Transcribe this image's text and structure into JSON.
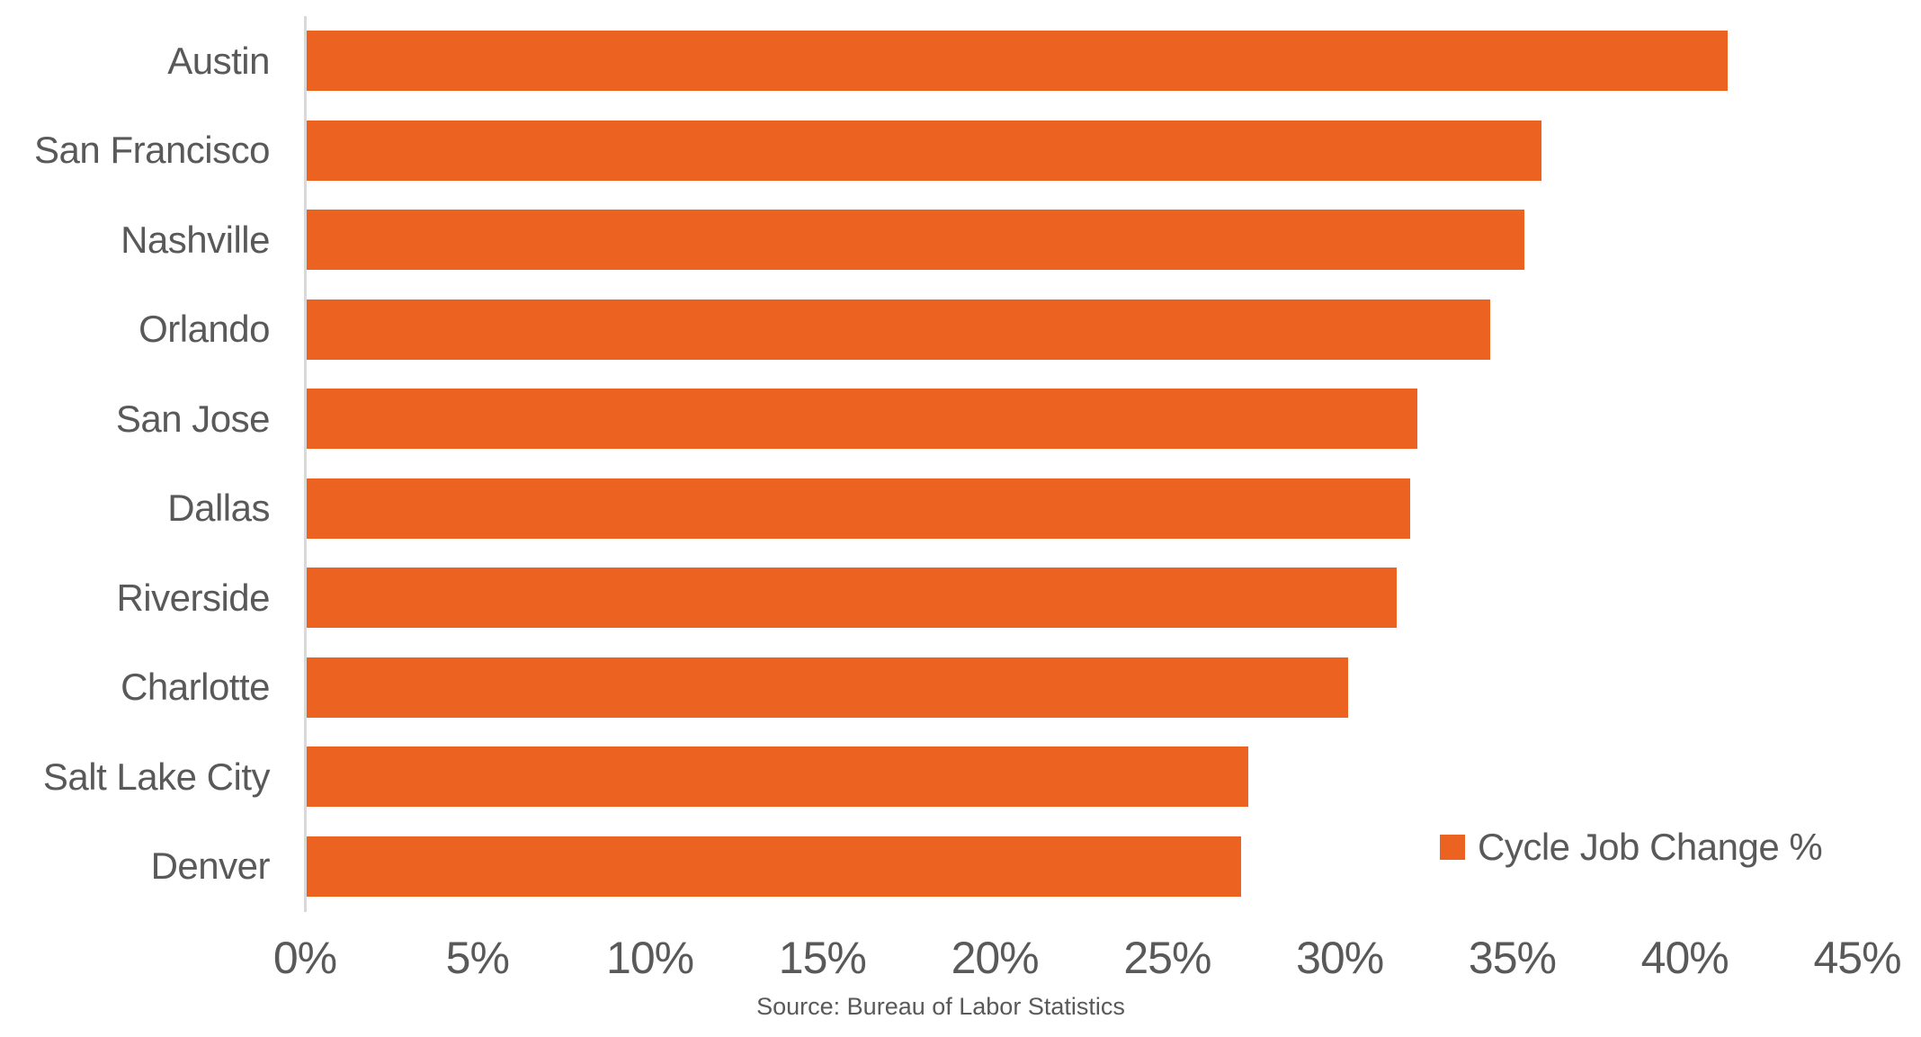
{
  "chart_data": {
    "type": "bar",
    "orientation": "horizontal",
    "categories": [
      "Austin",
      "San Francisco",
      "Nashville",
      "Orlando",
      "San Jose",
      "Dallas",
      "Riverside",
      "Charlotte",
      "Salt Lake City",
      "Denver"
    ],
    "values": [
      41.2,
      35.8,
      35.3,
      34.3,
      32.2,
      32.0,
      31.6,
      30.2,
      27.3,
      27.1
    ],
    "series_name": "Cycle Job Change %",
    "title": "",
    "xlabel": "",
    "ylabel": "",
    "xlim": [
      0,
      45
    ],
    "x_tick_values": [
      0,
      5,
      10,
      15,
      20,
      25,
      30,
      35,
      40,
      45
    ],
    "x_tick_labels": [
      "0%",
      "5%",
      "10%",
      "15%",
      "20%",
      "25%",
      "30%",
      "35%",
      "40%",
      "45%"
    ],
    "grid": false,
    "legend_position": "inside-bottom-right",
    "bar_color": "#eb6221"
  },
  "legend": {
    "label": "Cycle Job Change %",
    "swatch_color": "#eb6221"
  },
  "footer": {
    "source": "Source: Bureau of Labor Statistics"
  },
  "colors": {
    "bar": "#eb6221",
    "text": "#595959",
    "axis_line": "#d9d9d9",
    "background": "#ffffff"
  }
}
